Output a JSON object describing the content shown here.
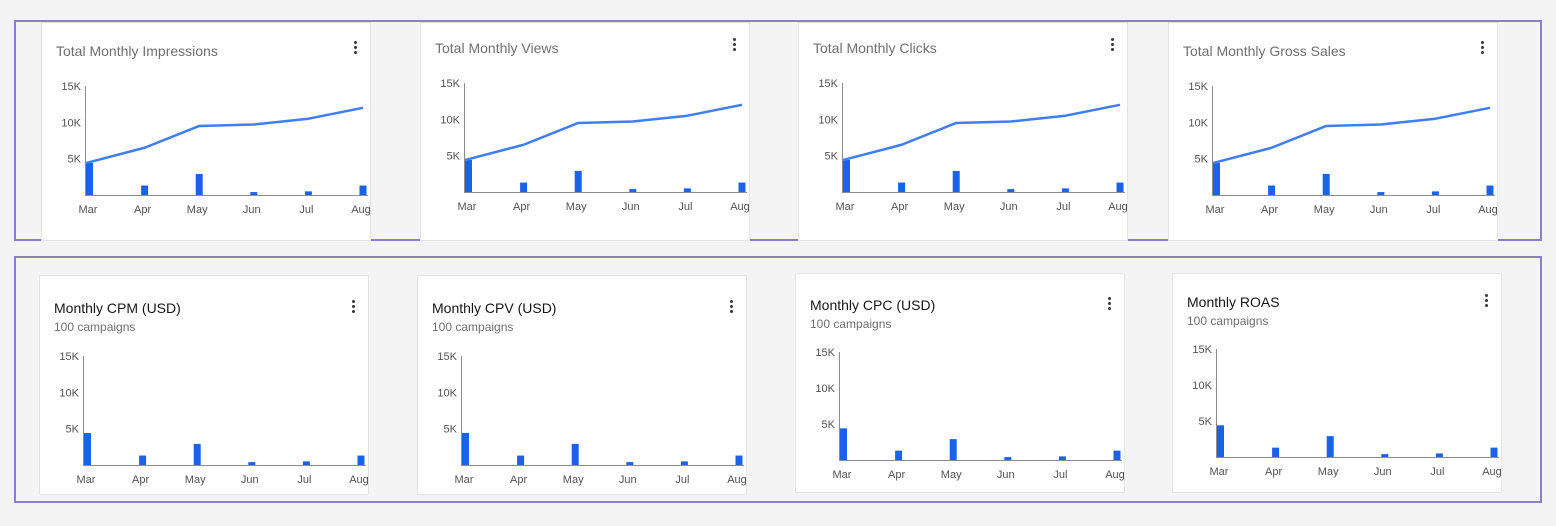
{
  "colors": {
    "accent": "#3d7ef5",
    "bar": "#1a63e8",
    "axis": "#8d8d8d",
    "frame": "#8c7fc9"
  },
  "menu_icon": "overflow-menu-vertical-icon",
  "cards": [
    {
      "title": "Total Monthly Impressions",
      "subtitle": "",
      "menu_label": "⋮",
      "chart_data": {
        "type": "bar+line",
        "x_ticks": [
          "Mar",
          "Apr",
          "May",
          "Jun",
          "Jul",
          "Aug"
        ],
        "y_ticks": [
          "15K",
          "10K",
          "5K"
        ],
        "ylim": [
          0,
          15000
        ],
        "series": [
          {
            "kind": "bar",
            "values": [
              4400,
              1300,
              2900,
              400,
              500,
              1300
            ]
          },
          {
            "kind": "line",
            "values": [
              4400,
              6500,
              9500,
              9700,
              10500,
              12000
            ]
          }
        ]
      }
    },
    {
      "title": "Total Monthly Views",
      "subtitle": "",
      "menu_label": "⋮",
      "chart_data": {
        "type": "bar+line",
        "x_ticks": [
          "Mar",
          "Apr",
          "May",
          "Jun",
          "Jul",
          "Aug"
        ],
        "y_ticks": [
          "15K",
          "10K",
          "5K"
        ],
        "ylim": [
          0,
          15000
        ],
        "series": [
          {
            "kind": "bar",
            "values": [
              4400,
              1300,
              2900,
              400,
              500,
              1300
            ]
          },
          {
            "kind": "line",
            "values": [
              4400,
              6500,
              9500,
              9700,
              10500,
              12000
            ]
          }
        ]
      }
    },
    {
      "title": "Total Monthly Clicks",
      "subtitle": "",
      "menu_label": "⋮",
      "chart_data": {
        "type": "bar+line",
        "x_ticks": [
          "Mar",
          "Apr",
          "May",
          "Jun",
          "Jul",
          "Aug"
        ],
        "y_ticks": [
          "15K",
          "10K",
          "5K"
        ],
        "ylim": [
          0,
          15000
        ],
        "series": [
          {
            "kind": "bar",
            "values": [
              4400,
              1300,
              2900,
              400,
              500,
              1300
            ]
          },
          {
            "kind": "line",
            "values": [
              4400,
              6500,
              9500,
              9700,
              10500,
              12000
            ]
          }
        ]
      }
    },
    {
      "title": "Total Monthly Gross Sales",
      "subtitle": "",
      "menu_label": "⋮",
      "chart_data": {
        "type": "bar+line",
        "x_ticks": [
          "Mar",
          "Apr",
          "May",
          "Jun",
          "Jul",
          "Aug"
        ],
        "y_ticks": [
          "15K",
          "10K",
          "5K"
        ],
        "ylim": [
          0,
          15000
        ],
        "series": [
          {
            "kind": "bar",
            "values": [
              4400,
              1300,
              2900,
              400,
              500,
              1300
            ]
          },
          {
            "kind": "line",
            "values": [
              4400,
              6500,
              9500,
              9700,
              10500,
              12000
            ]
          }
        ]
      }
    },
    {
      "title": "Monthly CPM (USD)",
      "subtitle": "100 campaigns",
      "menu_label": "⋮",
      "chart_data": {
        "type": "bar",
        "x_ticks": [
          "Mar",
          "Apr",
          "May",
          "Jun",
          "Jul",
          "Aug"
        ],
        "y_ticks": [
          "15K",
          "10K",
          "5K"
        ],
        "ylim": [
          0,
          15000
        ],
        "series": [
          {
            "kind": "bar",
            "values": [
              4400,
              1300,
              2900,
              400,
              500,
              1300
            ]
          }
        ]
      }
    },
    {
      "title": "Monthly CPV (USD)",
      "subtitle": "100 campaigns",
      "menu_label": "⋮",
      "chart_data": {
        "type": "bar",
        "x_ticks": [
          "Mar",
          "Apr",
          "May",
          "Jun",
          "Jul",
          "Aug"
        ],
        "y_ticks": [
          "15K",
          "10K",
          "5K"
        ],
        "ylim": [
          0,
          15000
        ],
        "series": [
          {
            "kind": "bar",
            "values": [
              4400,
              1300,
              2900,
              400,
              500,
              1300
            ]
          }
        ]
      }
    },
    {
      "title": "Monthly CPC (USD)",
      "subtitle": "100 campaigns",
      "menu_label": "⋮",
      "chart_data": {
        "type": "bar",
        "x_ticks": [
          "Mar",
          "Apr",
          "May",
          "Jun",
          "Jul",
          "Aug"
        ],
        "y_ticks": [
          "15K",
          "10K",
          "5K"
        ],
        "ylim": [
          0,
          15000
        ],
        "series": [
          {
            "kind": "bar",
            "values": [
              4400,
              1300,
              2900,
              400,
              500,
              1300
            ]
          }
        ]
      }
    },
    {
      "title": "Monthly ROAS",
      "subtitle": "100 campaigns",
      "menu_label": "⋮",
      "chart_data": {
        "type": "bar",
        "x_ticks": [
          "Mar",
          "Apr",
          "May",
          "Jun",
          "Jul",
          "Aug"
        ],
        "y_ticks": [
          "15K",
          "10K",
          "5K"
        ],
        "ylim": [
          0,
          15000
        ],
        "series": [
          {
            "kind": "bar",
            "values": [
              4400,
              1300,
              2900,
              400,
              500,
              1300
            ]
          }
        ]
      }
    }
  ]
}
